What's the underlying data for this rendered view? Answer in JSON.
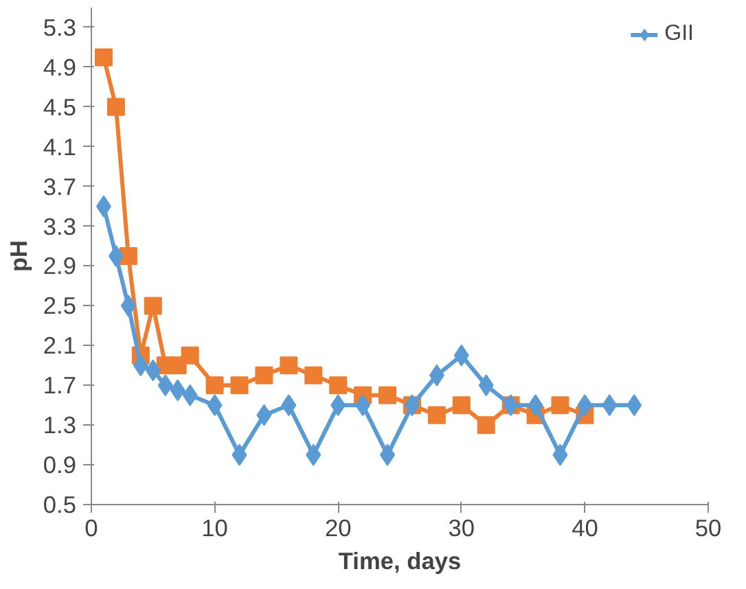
{
  "chart_data": {
    "type": "line",
    "xlabel": "Time, days",
    "ylabel": "pH",
    "xlim": [
      0,
      50
    ],
    "xticks": [
      0,
      10,
      20,
      30,
      40,
      50
    ],
    "ylim": [
      0.5,
      5.5
    ],
    "yticks": [
      0.5,
      0.9,
      1.3,
      1.7,
      2.1,
      2.5,
      2.9,
      3.3,
      3.7,
      4.1,
      4.5,
      4.9,
      5.3
    ],
    "grid": false,
    "legend": "top right",
    "series": [
      {
        "name": "GII",
        "color": "#5b9bd5",
        "marker": "diamond",
        "x": [
          1,
          2,
          3,
          4,
          5,
          6,
          7,
          8,
          10,
          12,
          14,
          16,
          18,
          20,
          22,
          24,
          26,
          28,
          30,
          32,
          34,
          36,
          38,
          40,
          42,
          44
        ],
        "values": [
          3.5,
          3.0,
          2.5,
          1.9,
          1.85,
          1.7,
          1.65,
          1.6,
          1.5,
          1.0,
          1.4,
          1.5,
          1.0,
          1.5,
          1.5,
          1.0,
          1.5,
          1.8,
          2.0,
          1.7,
          1.5,
          1.5,
          1.0,
          1.5,
          1.5,
          1.5
        ]
      },
      {
        "color": "#ed7d31",
        "marker": "square",
        "x": [
          1,
          2,
          3,
          4,
          5,
          6,
          7,
          8,
          10,
          12,
          14,
          16,
          18,
          20,
          22,
          24,
          26,
          28,
          30,
          32,
          34,
          36,
          38,
          40
        ],
        "values": [
          5.0,
          4.5,
          3.0,
          2.0,
          2.5,
          1.9,
          1.9,
          2.0,
          1.7,
          1.7,
          1.8,
          1.9,
          1.8,
          1.7,
          1.6,
          1.6,
          1.5,
          1.4,
          1.5,
          1.3,
          1.5,
          1.4,
          1.5,
          1.4
        ]
      }
    ]
  }
}
